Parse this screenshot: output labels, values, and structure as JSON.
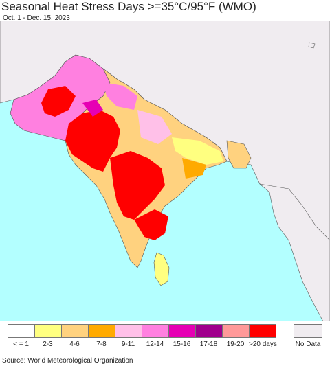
{
  "title": "Seasonal Heat Stress Days >=35°C/95°F (WMO)",
  "subtitle": "Oct. 1 - Dec. 15, 2023",
  "source": "Source: World Meteorological Organization",
  "colors": {
    "ocean": "#b3ffff",
    "nodata": "#f0ecf0",
    "border": "#333333"
  },
  "legend": {
    "items": [
      {
        "label": "< = 1",
        "color": "#ffffff"
      },
      {
        "label": "2-3",
        "color": "#ffff80"
      },
      {
        "label": "4-6",
        "color": "#ffd27f"
      },
      {
        "label": "7-8",
        "color": "#ffaa00"
      },
      {
        "label": "9-11",
        "color": "#ffc0e8"
      },
      {
        "label": "12-14",
        "color": "#ff80e0"
      },
      {
        "label": "15-16",
        "color": "#e600b4"
      },
      {
        "label": "17-18",
        "color": "#a0008c"
      },
      {
        "label": "19-20",
        "color": "#ff9999"
      },
      {
        "label": ">20 days",
        "color": "#ff0000"
      }
    ],
    "nodata_label": "No Data",
    "nodata_color": "#f0ecf0"
  }
}
